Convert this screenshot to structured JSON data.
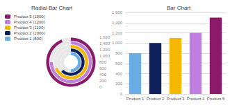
{
  "chart_data": [
    {
      "type": "radial",
      "title": "Radial Bar Chart",
      "series": [
        {
          "name": "Product 5 (1500)",
          "color": "#8b1a6b",
          "values": [
            1500
          ]
        },
        {
          "name": "Product 4 (1200)",
          "color": "#c07fe0",
          "values": [
            1200
          ]
        },
        {
          "name": "Product 3 (1100)",
          "color": "#f5b800",
          "values": [
            1100
          ]
        },
        {
          "name": "Product 2 (1000)",
          "color": "#0d1f5c",
          "values": [
            1000
          ]
        },
        {
          "name": "Product 1 (800)",
          "color": "#6aade4",
          "values": [
            800
          ]
        }
      ],
      "ylim": [
        0,
        1600
      ],
      "yticks": [
        0,
        200,
        400,
        600,
        800,
        1000,
        1200,
        1400,
        1600
      ],
      "legend": "upper left"
    },
    {
      "type": "bar",
      "title": "Bar Chart",
      "categories": [
        "Product 1",
        "Product 2",
        "Product 3",
        "Product 4",
        "Product 5"
      ],
      "values": [
        800,
        1000,
        1100,
        1200,
        1500
      ],
      "colors": [
        "#6aade4",
        "#0d1f5c",
        "#f5b800",
        "#c07fe0",
        "#8b1a6b"
      ],
      "ylim": [
        0,
        1600
      ],
      "yticks": [
        0,
        200,
        400,
        600,
        800,
        1000,
        1200,
        1400,
        1600
      ],
      "grid": true
    }
  ]
}
